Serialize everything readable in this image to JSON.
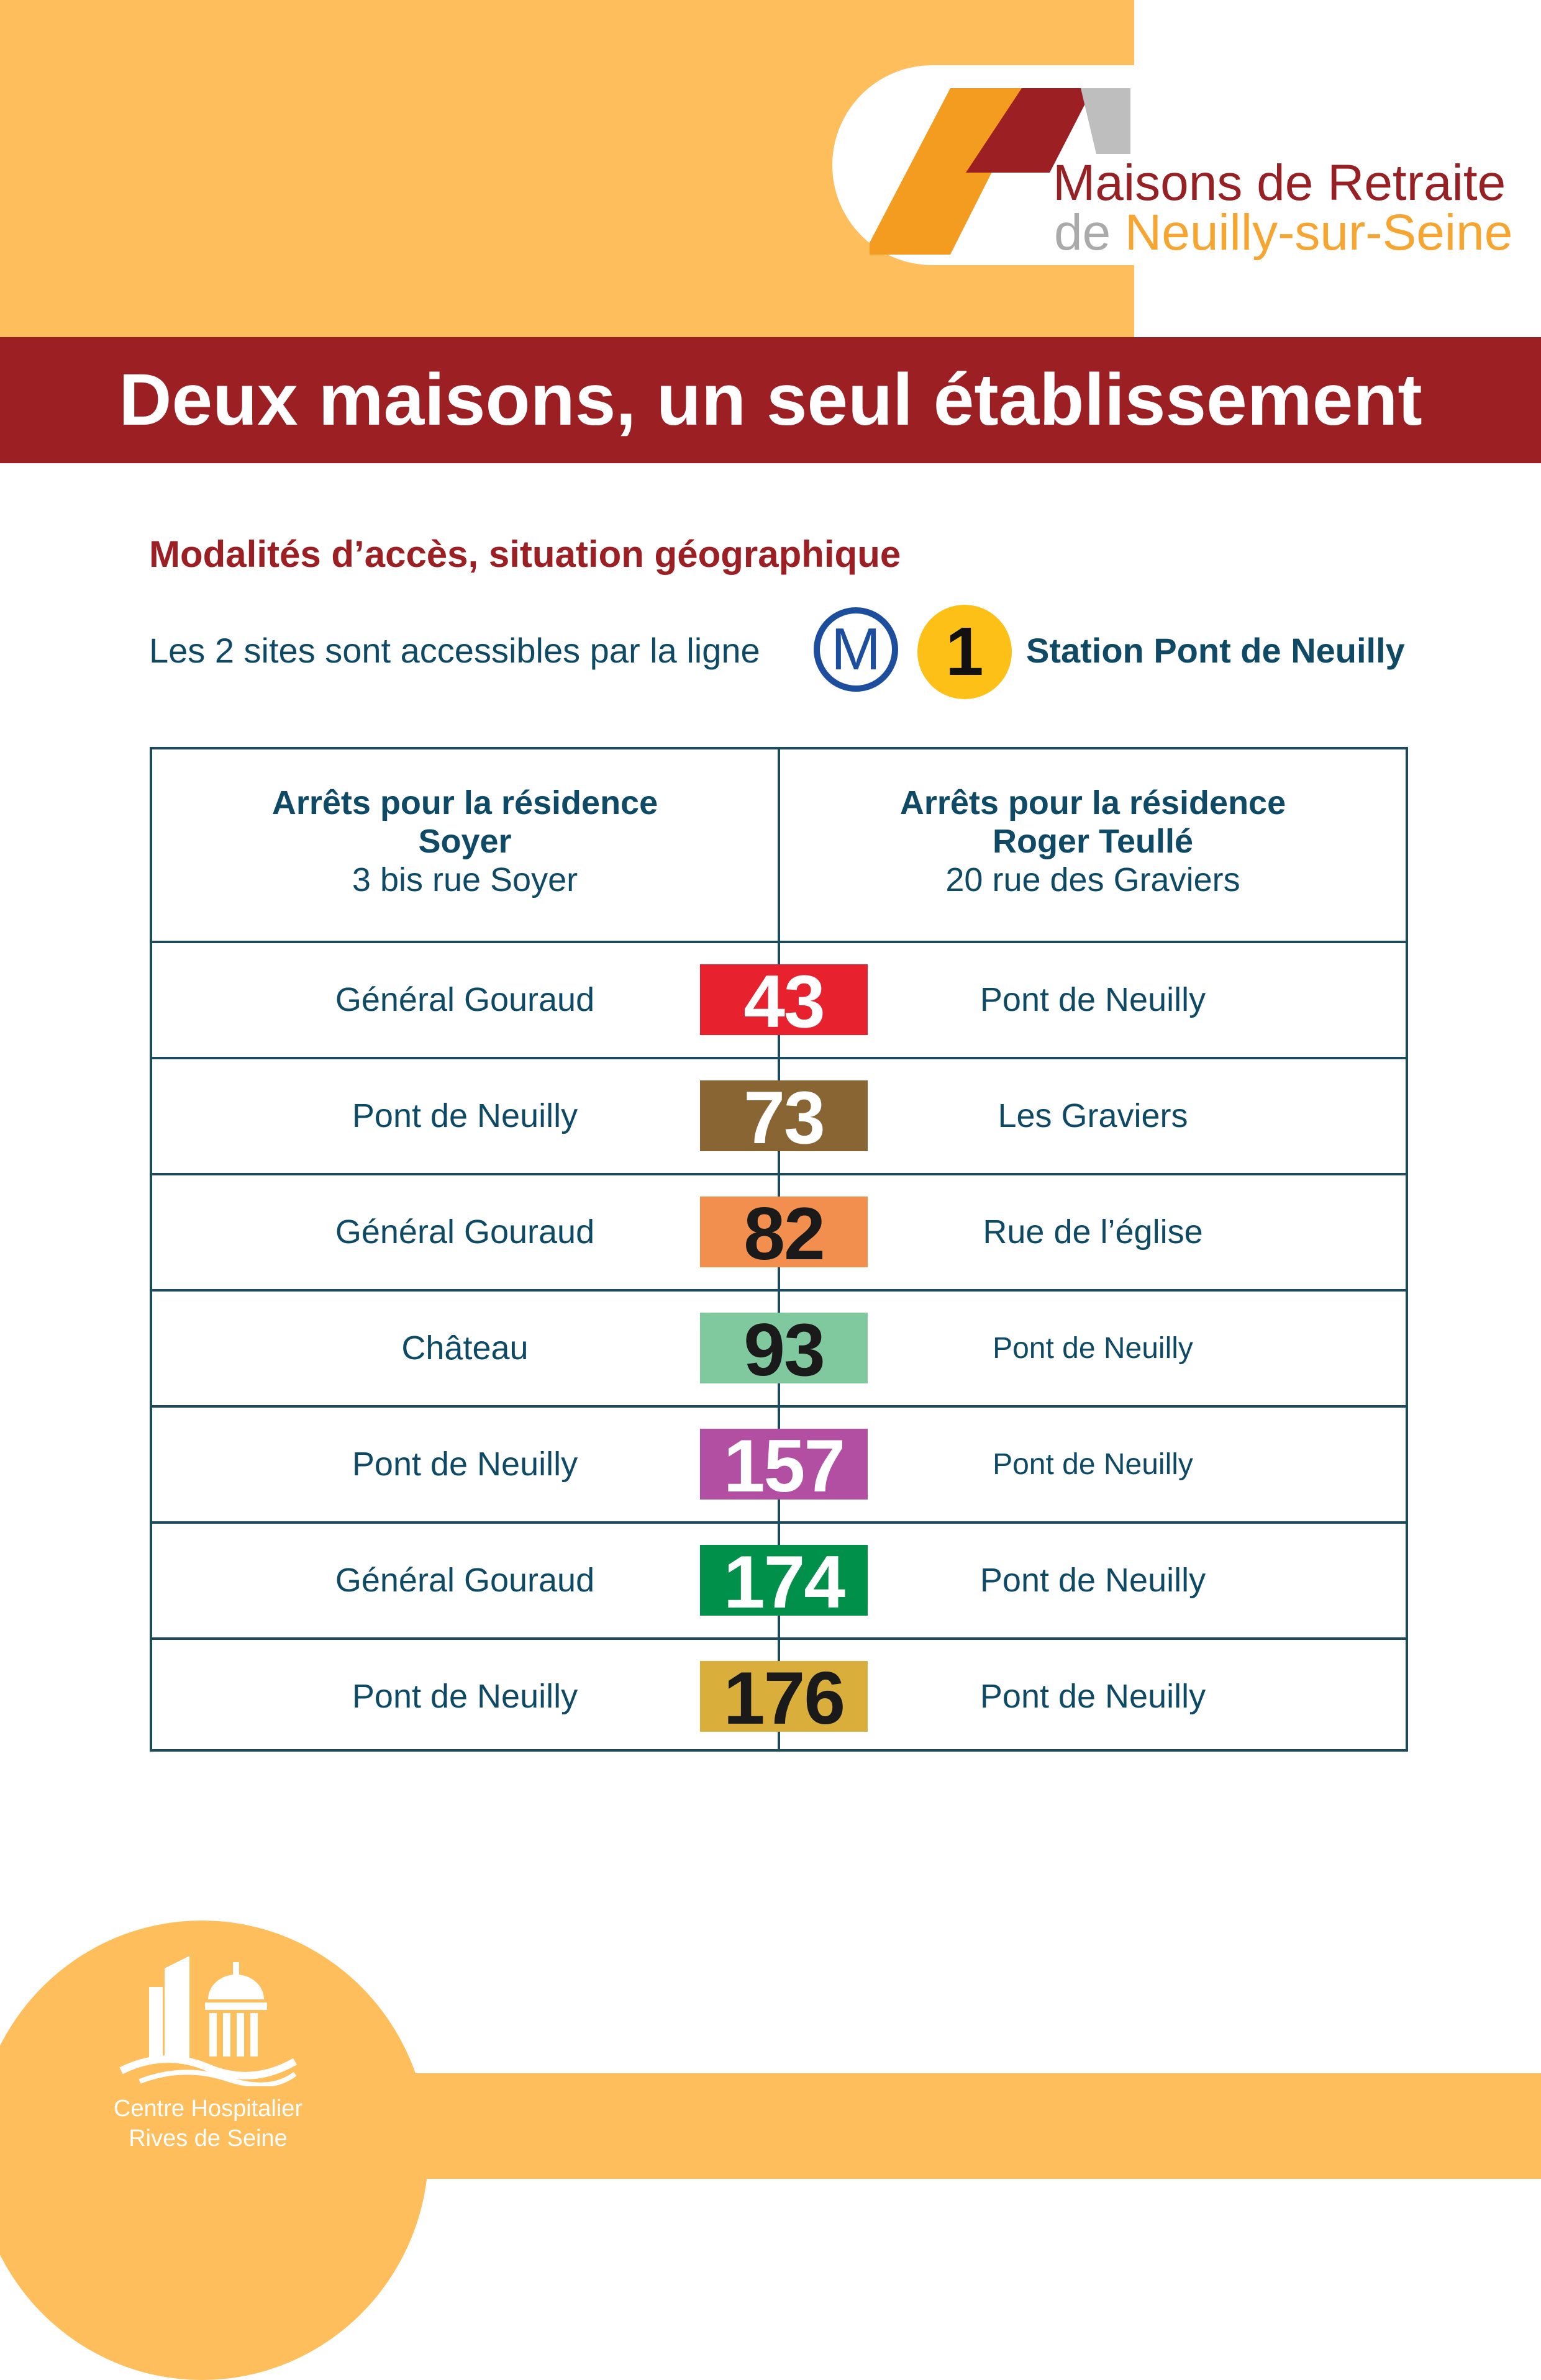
{
  "brand": {
    "name_line1": "Maisons de Retraite",
    "name_line2_prefix": "de",
    "name_line2_rest": " Neuilly-sur-Seine",
    "colors": {
      "primary": "#9B1F23",
      "accent": "#FDBE5B",
      "text": "#0E4A66"
    }
  },
  "header": {
    "title": "Deux maisons, un seul établissement"
  },
  "access": {
    "subtitle": "Modalités d’accès, situation géographique",
    "text": "Les 2 sites sont accessibles par la ligne",
    "metro_symbol": "M",
    "metro_line": "1",
    "station": "Station Pont de Neuilly"
  },
  "table": {
    "left_header": {
      "line1": "Arrêts pour la résidence",
      "line2": "Soyer",
      "address": "3 bis rue Soyer"
    },
    "right_header": {
      "line1": "Arrêts pour la résidence",
      "line2": "Roger Teullé",
      "address": "20 rue des Graviers"
    },
    "rows": [
      {
        "left": "Général Gouraud",
        "bus": "43",
        "right": "Pont de Neuilly",
        "color": "#E8212F",
        "text_color": "#FFFFFF"
      },
      {
        "left": "Pont de Neuilly",
        "bus": "73",
        "right": "Les Graviers",
        "color": "#8A6534",
        "text_color": "#FFFFFF"
      },
      {
        "left": "Général Gouraud",
        "bus": "82",
        "right": "Rue de l’église",
        "color": "#F28F4E",
        "text_color": "#1A1A1A"
      },
      {
        "left": "Château",
        "bus": "93",
        "right": "Pont de Neuilly",
        "color": "#80C89D",
        "text_color": "#1A1A1A"
      },
      {
        "left": "Pont de Neuilly",
        "bus": "157",
        "right": "Pont de Neuilly",
        "color": "#B24FA3",
        "text_color": "#FFFFFF"
      },
      {
        "left": "Général Gouraud",
        "bus": "174",
        "right": "Pont de Neuilly",
        "color": "#00904A",
        "text_color": "#FFFFFF"
      },
      {
        "left": "Pont de Neuilly",
        "bus": "176",
        "right": "Pont de Neuilly",
        "color": "#D9AE3A",
        "text_color": "#1A1A1A"
      }
    ]
  },
  "footer": {
    "org_line1": "Centre Hospitalier",
    "org_line2": "Rives de Seine"
  }
}
